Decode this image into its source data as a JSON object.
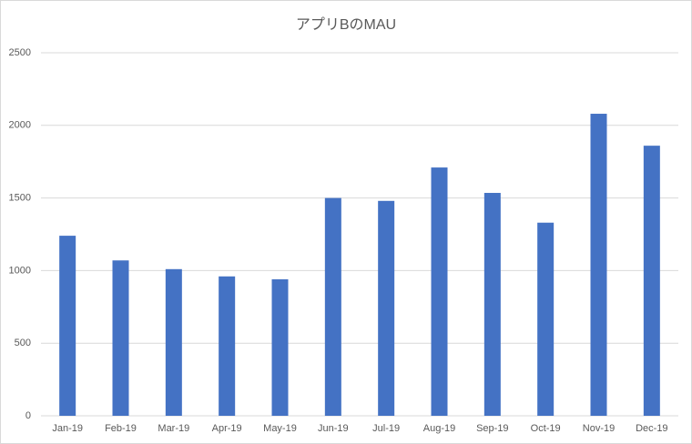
{
  "chart_data": {
    "type": "bar",
    "title": "アプリBのMAU",
    "categories": [
      "Jan-19",
      "Feb-19",
      "Mar-19",
      "Apr-19",
      "May-19",
      "Jun-19",
      "Jul-19",
      "Aug-19",
      "Sep-19",
      "Oct-19",
      "Nov-19",
      "Dec-19"
    ],
    "values": [
      1240,
      1070,
      1010,
      960,
      940,
      1500,
      1480,
      1710,
      1535,
      1330,
      2080,
      1860
    ],
    "color": "#4472c4",
    "ylim": [
      0,
      2500
    ],
    "yticks": [
      0,
      500,
      1000,
      1500,
      2000,
      2500
    ],
    "grid": true
  }
}
